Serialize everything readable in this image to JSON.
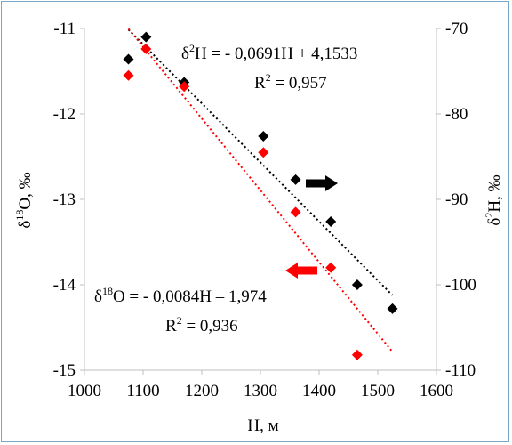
{
  "chart_data": {
    "type": "scatter",
    "xlabel": "H, м",
    "ylabel_left_prefix": "δ",
    "ylabel_left_sup": "18",
    "ylabel_left_suffix": "O, ‰",
    "ylabel_right_prefix": "δ",
    "ylabel_right_sup": "2",
    "ylabel_right_suffix": "H, ‰",
    "xlim": [
      1000,
      1600
    ],
    "ylim_left": [
      -15,
      -11
    ],
    "ylim_right": [
      -110,
      -70
    ],
    "x_ticks": [
      "1000",
      "1100",
      "1200",
      "1300",
      "1400",
      "1500",
      "1600"
    ],
    "y_left_ticks": [
      "-11",
      "-12",
      "-13",
      "-14",
      "-15"
    ],
    "y_right_ticks": [
      "-70",
      "-80",
      "-90",
      "-100",
      "-110"
    ],
    "grid": false,
    "series": [
      {
        "axis": "right",
        "color": "#000000",
        "marker": "diamond",
        "x": [
          1075,
          1105,
          1170,
          1305,
          1360,
          1420,
          1465,
          1525
        ],
        "y": [
          -73.6,
          -71.0,
          -76.3,
          -82.6,
          -87.7,
          -92.6,
          -100.0,
          -102.8
        ]
      },
      {
        "axis": "left",
        "color": "#ff0000",
        "marker": "diamond",
        "x": [
          1075,
          1105,
          1170,
          1305,
          1360,
          1420,
          1465
        ],
        "y": [
          -11.55,
          -11.24,
          -11.68,
          -12.45,
          -13.15,
          -13.8,
          -14.82
        ]
      }
    ],
    "trendlines": [
      {
        "axis": "right",
        "color": "#000000",
        "style": "dotted",
        "slope": -0.0691,
        "intercept": 4.1533,
        "x_range": [
          1075,
          1525
        ],
        "eq_prefix": "δ",
        "eq_sup": "2",
        "eq_body": "H = - 0,0691H + 4,1533",
        "r2_label": "R",
        "r2_sup": "2",
        "r2_value": " = 0,957"
      },
      {
        "axis": "left",
        "color": "#ff0000",
        "style": "dotted",
        "slope": -0.0084,
        "intercept": -1.974,
        "x_range": [
          1075,
          1525
        ],
        "eq_prefix": "δ",
        "eq_sup": "18",
        "eq_body": "O = - 0,0084H – 1,974",
        "r2_label": "R",
        "r2_sup": "2",
        "r2_value": " = 0,936"
      }
    ],
    "arrows": [
      {
        "color": "#000000",
        "direction": "right",
        "series": "right-axis"
      },
      {
        "color": "#ff0000",
        "direction": "left",
        "series": "left-axis"
      }
    ]
  }
}
